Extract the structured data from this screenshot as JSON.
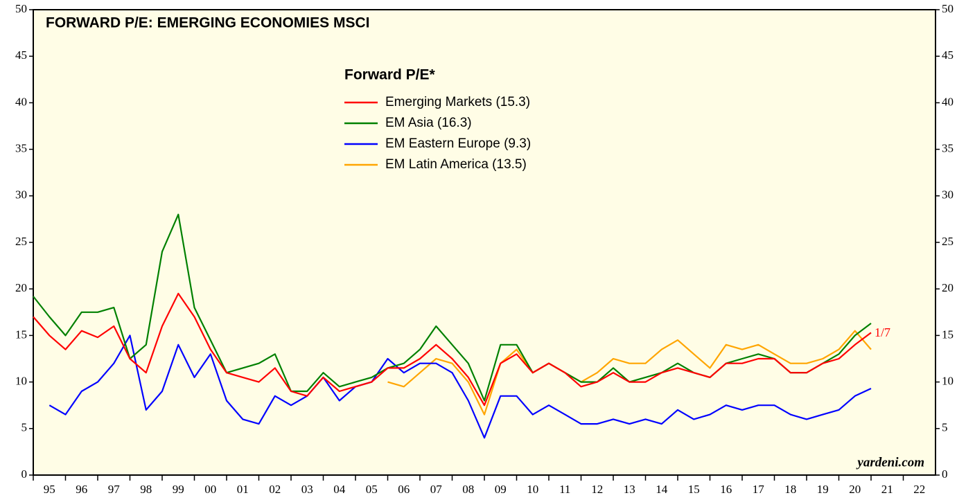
{
  "chart_data": {
    "type": "line",
    "title": "FORWARD P/E: EMERGING ECONOMIES MSCI",
    "legend_title": "Forward P/E*",
    "annotations": [
      "1/7",
      "yardeni.com"
    ],
    "x": [
      1995.0,
      1995.5,
      1996.0,
      1996.5,
      1997.0,
      1997.5,
      1998.0,
      1998.5,
      1999.0,
      1999.5,
      2000.0,
      2000.5,
      2001.0,
      2001.5,
      2002.0,
      2002.5,
      2003.0,
      2003.5,
      2004.0,
      2004.5,
      2005.0,
      2005.5,
      2006.0,
      2006.5,
      2007.0,
      2007.5,
      2008.0,
      2008.5,
      2009.0,
      2009.5,
      2010.0,
      2010.5,
      2011.0,
      2011.5,
      2012.0,
      2012.5,
      2013.0,
      2013.5,
      2014.0,
      2014.5,
      2015.0,
      2015.5,
      2016.0,
      2016.5,
      2017.0,
      2017.5,
      2018.0,
      2018.5,
      2019.0,
      2019.5,
      2020.0,
      2020.5,
      2021.0
    ],
    "series": [
      {
        "name": "Emerging Markets (15.3)",
        "color": "#ff0000",
        "values": [
          17,
          15,
          13.5,
          15.5,
          14.8,
          16,
          12.5,
          11,
          16,
          19.5,
          17,
          13.5,
          11,
          10.5,
          10,
          11.5,
          9,
          8.5,
          10.5,
          9,
          9.5,
          10,
          11.5,
          11.5,
          12.5,
          14,
          12.5,
          10.5,
          7.5,
          12,
          13,
          11,
          12,
          11,
          9.5,
          10,
          11,
          10,
          10,
          11,
          11.5,
          11,
          10.5,
          12,
          12,
          12.5,
          12.5,
          11,
          11,
          12,
          12.5,
          14,
          15.3
        ]
      },
      {
        "name": "EM Asia (16.3)",
        "color": "#008000",
        "values": [
          19.2,
          17,
          15,
          17.5,
          17.5,
          18,
          12.5,
          14,
          24,
          28,
          18,
          14.5,
          11,
          11.5,
          12,
          13,
          9,
          9,
          11,
          9.5,
          10,
          10.5,
          11.5,
          12,
          13.5,
          16,
          14,
          12,
          8,
          14,
          14,
          11,
          12,
          11,
          10,
          10,
          11.5,
          10,
          10.5,
          11,
          12,
          11,
          10.5,
          12,
          12.5,
          13,
          12.5,
          11,
          11,
          12,
          13,
          15,
          16.3
        ]
      },
      {
        "name": "EM Eastern Europe (9.3)",
        "color": "#0000ff",
        "values": [
          null,
          7.5,
          6.5,
          9,
          10,
          12,
          15,
          7,
          9,
          14,
          10.5,
          13,
          8,
          6,
          5.5,
          8.5,
          7.5,
          8.5,
          10.5,
          8,
          9.5,
          10,
          12.5,
          11,
          12,
          12,
          11,
          8,
          4,
          8.5,
          8.5,
          6.5,
          7.5,
          6.5,
          5.5,
          5.5,
          6,
          5.5,
          6,
          5.5,
          7,
          6,
          6.5,
          7.5,
          7,
          7.5,
          7.5,
          6.5,
          6,
          6.5,
          7,
          8.5,
          9.3
        ]
      },
      {
        "name": "EM Latin America (13.5)",
        "color": "#ffa500",
        "values": [
          null,
          null,
          null,
          null,
          null,
          null,
          null,
          null,
          null,
          null,
          null,
          null,
          null,
          null,
          null,
          null,
          null,
          null,
          null,
          null,
          null,
          null,
          10,
          9.5,
          11,
          12.5,
          12,
          10,
          6.5,
          12,
          13.5,
          11,
          12,
          11,
          10,
          11,
          12.5,
          12,
          12,
          13.5,
          14.5,
          13,
          11.5,
          14,
          13.5,
          14,
          13,
          12,
          12,
          12.5,
          13.5,
          15.5,
          13.5
        ]
      }
    ],
    "xlim": [
      1995,
      2023
    ],
    "xticks": [
      {
        "value": 1995,
        "label": "95"
      },
      {
        "value": 1996,
        "label": "96"
      },
      {
        "value": 1997,
        "label": "97"
      },
      {
        "value": 1998,
        "label": "98"
      },
      {
        "value": 1999,
        "label": "99"
      },
      {
        "value": 2000,
        "label": "00"
      },
      {
        "value": 2001,
        "label": "01"
      },
      {
        "value": 2002,
        "label": "02"
      },
      {
        "value": 2003,
        "label": "03"
      },
      {
        "value": 2004,
        "label": "04"
      },
      {
        "value": 2005,
        "label": "05"
      },
      {
        "value": 2006,
        "label": "06"
      },
      {
        "value": 2007,
        "label": "07"
      },
      {
        "value": 2008,
        "label": "08"
      },
      {
        "value": 2009,
        "label": "09"
      },
      {
        "value": 2010,
        "label": "10"
      },
      {
        "value": 2011,
        "label": "11"
      },
      {
        "value": 2012,
        "label": "12"
      },
      {
        "value": 2013,
        "label": "13"
      },
      {
        "value": 2014,
        "label": "14"
      },
      {
        "value": 2015,
        "label": "15"
      },
      {
        "value": 2016,
        "label": "16"
      },
      {
        "value": 2017,
        "label": "17"
      },
      {
        "value": 2018,
        "label": "18"
      },
      {
        "value": 2019,
        "label": "19"
      },
      {
        "value": 2020,
        "label": "20"
      },
      {
        "value": 2021,
        "label": "21"
      },
      {
        "value": 2022,
        "label": "22"
      }
    ],
    "ylim": [
      0,
      50
    ],
    "yticks": [
      0,
      5,
      10,
      15,
      20,
      25,
      30,
      35,
      40,
      45,
      50
    ],
    "y2lim": [
      0,
      50
    ],
    "y2ticks": [
      0,
      5,
      10,
      15,
      20,
      25,
      30,
      35,
      40,
      45,
      50
    ],
    "background": "#fffde6"
  }
}
